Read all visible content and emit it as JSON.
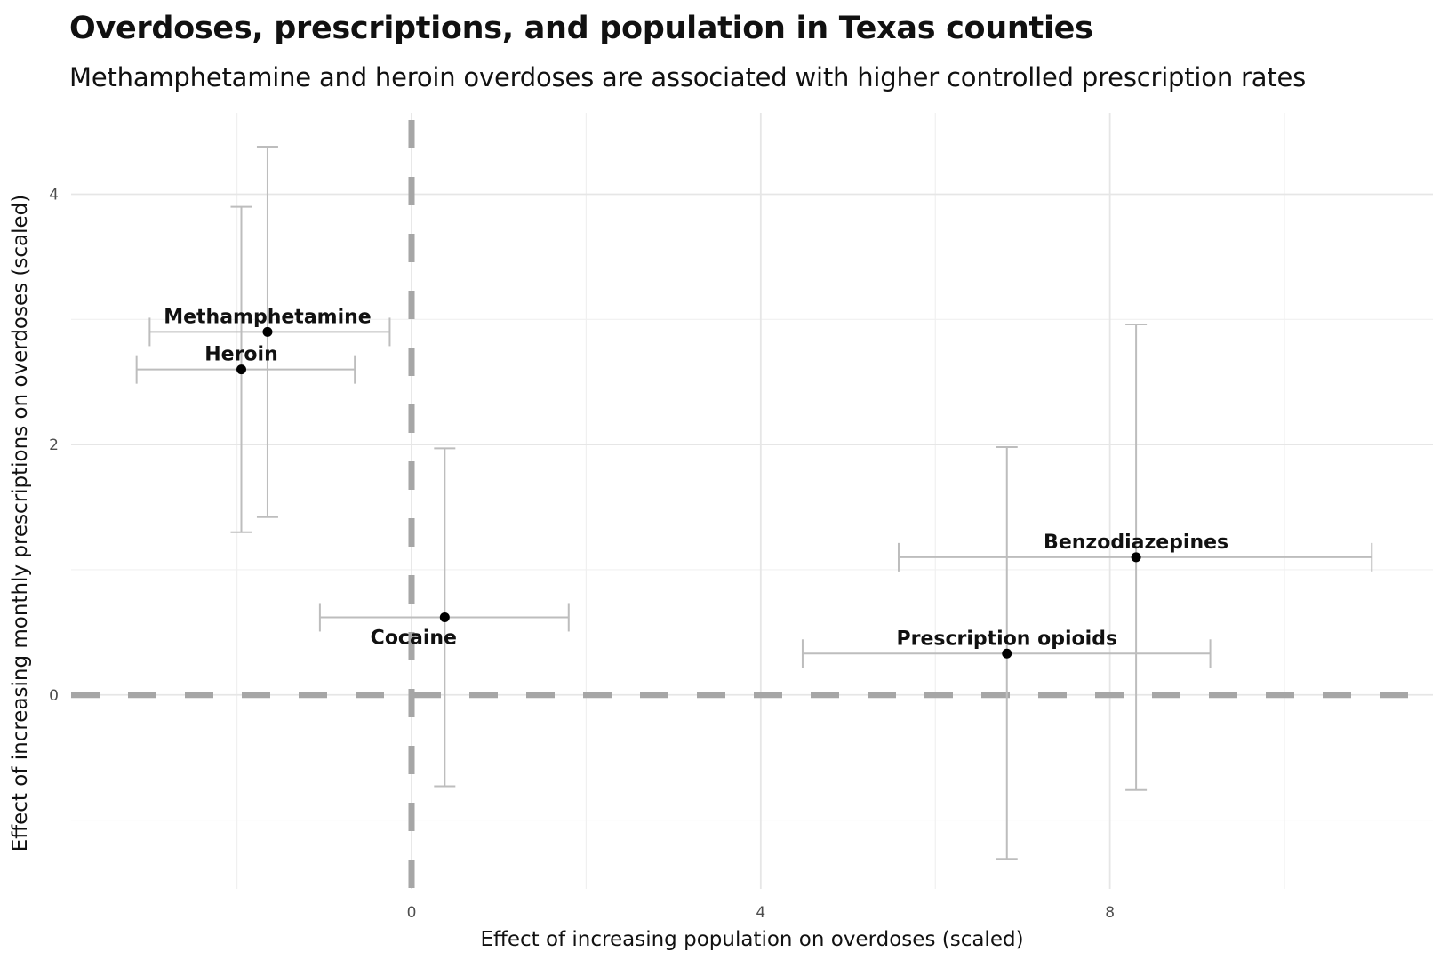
{
  "chart_data": {
    "type": "scatter",
    "title": "Overdoses, prescriptions, and population in Texas counties",
    "subtitle": "Methamphetamine and heroin overdoses are associated with higher controlled prescription rates",
    "xlabel": "Effect of increasing population on overdoses (scaled)",
    "ylabel": "Effect of increasing monthly prescriptions on overdoses (scaled)",
    "xlim": [
      -3.9,
      11.7
    ],
    "ylim": [
      -1.55,
      4.65
    ],
    "x_ticks": [
      0,
      4,
      8
    ],
    "y_ticks": [
      0,
      2,
      4
    ],
    "x_minor_grid": [
      -2,
      2,
      6,
      10
    ],
    "y_minor_grid": [
      -1,
      1,
      3
    ],
    "grid": true,
    "reference_lines": {
      "x": 0,
      "y": 0
    },
    "colors": {
      "point": "#000000",
      "errorbar": "#bdbdbd",
      "refline": "#a6a6a6",
      "grid_major": "#e6e6e6",
      "grid_minor": "#f0f0f0"
    },
    "points": [
      {
        "label": "Methamphetamine",
        "x": -1.65,
        "y": 2.9,
        "x_low": -3.0,
        "x_high": -0.25,
        "y_low": 1.42,
        "y_high": 4.38
      },
      {
        "label": "Heroin",
        "x": -1.95,
        "y": 2.6,
        "x_low": -3.15,
        "x_high": -0.65,
        "y_low": 1.3,
        "y_high": 3.9
      },
      {
        "label": "Cocaine",
        "x": 0.38,
        "y": 0.62,
        "x_low": -1.05,
        "x_high": 1.8,
        "y_low": -0.73,
        "y_high": 1.97
      },
      {
        "label": "Benzodiazepines",
        "x": 8.3,
        "y": 1.1,
        "x_low": 5.58,
        "x_high": 11.0,
        "y_low": -0.76,
        "y_high": 2.96
      },
      {
        "label": "Prescription opioids",
        "x": 6.82,
        "y": 0.33,
        "x_low": 4.48,
        "x_high": 9.15,
        "y_low": -1.31,
        "y_high": 1.98
      }
    ]
  }
}
